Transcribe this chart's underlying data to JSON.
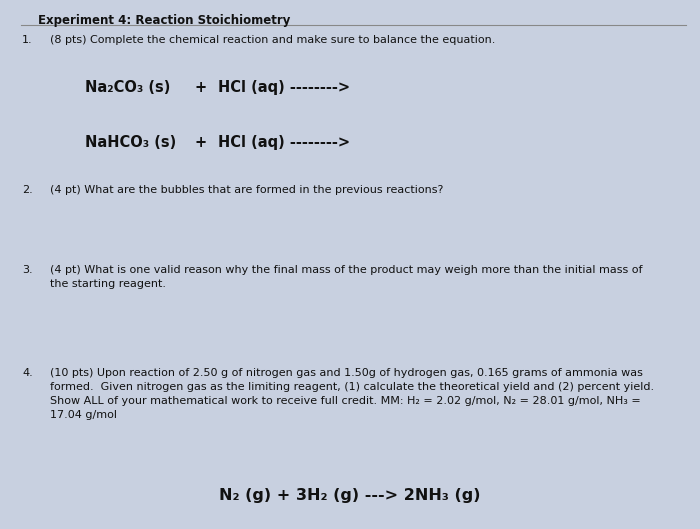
{
  "bg_color": "#c8d0e0",
  "paper_color": "#dce4f0",
  "title": "Experiment 4: Reaction Stoichiometry",
  "q1_text": "(8 pts) Complete the chemical reaction and make sure to balance the equation.",
  "rxn1_a": "Na₂CO₃ (s)",
  "rxn1_b": "+",
  "rxn1_c": "HCl (aq) -------->",
  "rxn2_a": "NaHCO₃ (s)",
  "rxn2_b": "+",
  "rxn2_c": "HCl (aq) -------->",
  "q2_text": "(4 pt) What are the bubbles that are formed in the previous reactions?",
  "q3_text": "(4 pt) What is one valid reason why the final mass of the product may weigh more than the initial mass of\nthe starting reagent.",
  "q4_text": "(10 pts) Upon reaction of 2.50 g of nitrogen gas and 1.50g of hydrogen gas, 0.165 grams of ammonia was\nformed.  Given nitrogen gas as the limiting reagent, (1) calculate the theoretical yield and (2) percent yield.\nShow ALL of your mathematical work to receive full credit. MM: H₂ = 2.02 g/mol, N₂ = 28.01 g/mol, NH₃ =\n17.04 g/mol",
  "q4_equation": "N₂ (g) + 3H₂ (g) ---> 2NH₃ (g)",
  "title_fontsize": 8.5,
  "text_fontsize": 8.0,
  "rxn_fontsize": 10.5,
  "eq_fontsize": 11.5,
  "text_color": "#111111"
}
